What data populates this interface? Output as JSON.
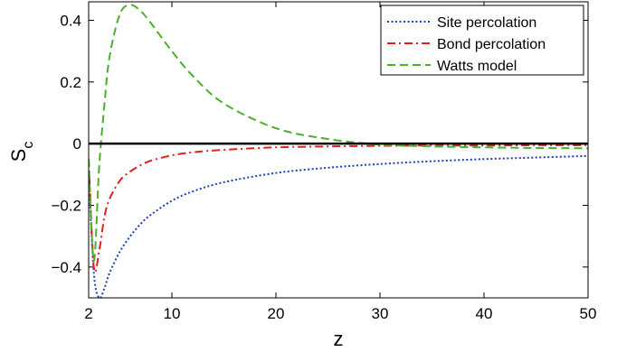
{
  "chart_data": {
    "type": "line",
    "xlabel": "z",
    "ylabel": "S",
    "ylabel_subscript": "c",
    "xlim": [
      2,
      50
    ],
    "ylim": [
      -0.5,
      0.46
    ],
    "xticks": [
      2,
      10,
      20,
      30,
      40,
      50
    ],
    "xtick_labels": [
      "2",
      "10",
      "20",
      "30",
      "40",
      "50"
    ],
    "yticks": [
      -0.4,
      -0.2,
      0,
      0.2,
      0.4
    ],
    "ytick_labels": [
      "−0.4",
      "−0.2",
      "0",
      "0.2",
      "0.4"
    ],
    "zero_line": true,
    "grid": false,
    "legend_position": "top-right",
    "x": [
      2,
      2.5,
      3,
      3.5,
      4,
      5,
      6,
      7,
      8,
      10,
      12,
      15,
      20,
      25,
      30,
      35,
      40,
      45,
      50
    ],
    "series": [
      {
        "name": "Site percolation",
        "color": "#1f3fbf",
        "style": "dotted",
        "values": [
          -0.1,
          -0.42,
          -0.5,
          -0.47,
          -0.42,
          -0.35,
          -0.3,
          -0.26,
          -0.23,
          -0.185,
          -0.155,
          -0.125,
          -0.095,
          -0.078,
          -0.066,
          -0.057,
          -0.05,
          -0.045,
          -0.04
        ]
      },
      {
        "name": "Bond percolation",
        "color": "#e0201c",
        "style": "dashdot",
        "values": [
          -0.05,
          -0.4,
          -0.35,
          -0.24,
          -0.18,
          -0.12,
          -0.09,
          -0.07,
          -0.055,
          -0.038,
          -0.028,
          -0.02,
          -0.012,
          -0.009,
          -0.007,
          -0.006,
          -0.006,
          -0.005,
          -0.005
        ]
      },
      {
        "name": "Watts model",
        "color": "#4caf2c",
        "style": "dashed",
        "values": [
          -0.05,
          -0.38,
          -0.08,
          0.12,
          0.28,
          0.42,
          0.45,
          0.43,
          0.39,
          0.3,
          0.22,
          0.13,
          0.05,
          0.015,
          -0.003,
          -0.009,
          -0.012,
          -0.014,
          -0.015
        ]
      }
    ]
  }
}
